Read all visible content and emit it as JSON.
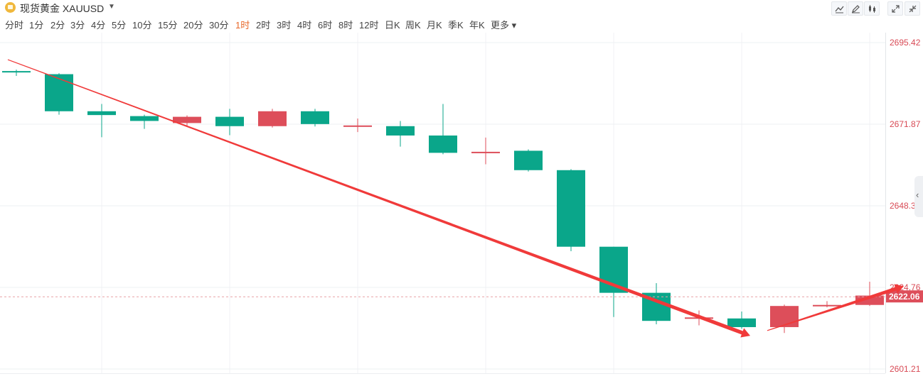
{
  "header": {
    "symbol_name": "现货黄金 XAUUSD",
    "dropdown_icon": "caret-down-icon",
    "tools": [
      "line-tool-icon",
      "draw-tool-icon",
      "indicator-tool-icon",
      "fullscreen-icon"
    ]
  },
  "periods": [
    "分时",
    "1分",
    "2分",
    "3分",
    "4分",
    "5分",
    "10分",
    "15分",
    "20分",
    "30分",
    "1时",
    "2时",
    "3时",
    "4时",
    "6时",
    "8时",
    "12时",
    "日K",
    "周K",
    "月K",
    "季K",
    "年K",
    "更多"
  ],
  "active_period": "1时",
  "colors": {
    "up": "#dd4e5a",
    "down": "#0aa68a",
    "accent": "#e8692b",
    "arrow": "#f03a3a"
  },
  "chart_data": {
    "type": "candlestick",
    "title": "",
    "y_ticks": [
      "2695.42",
      "2671.87",
      "2648.32",
      "2624.76",
      "2601.21"
    ],
    "ylim": [
      2601.21,
      2695.42
    ],
    "current_price": "2622.06",
    "grid": true,
    "candles": [
      {
        "open": 2687.2,
        "close": 2686.8,
        "high": 2687.6,
        "low": 2685.8
      },
      {
        "open": 2686.3,
        "close": 2675.6,
        "high": 2686.6,
        "low": 2674.6
      },
      {
        "open": 2675.6,
        "close": 2674.5,
        "high": 2677.7,
        "low": 2668.1
      },
      {
        "open": 2674.2,
        "close": 2672.8,
        "high": 2674.6,
        "low": 2670.5
      },
      {
        "open": 2672.2,
        "close": 2674.0,
        "high": 2674.4,
        "low": 2671.2
      },
      {
        "open": 2674.0,
        "close": 2671.3,
        "high": 2676.3,
        "low": 2668.7
      },
      {
        "open": 2671.3,
        "close": 2675.6,
        "high": 2676.3,
        "low": 2670.9
      },
      {
        "open": 2675.6,
        "close": 2671.9,
        "high": 2676.3,
        "low": 2671.2
      },
      {
        "open": 2671.5,
        "close": 2671.5,
        "high": 2673.5,
        "low": 2669.6
      },
      {
        "open": 2671.3,
        "close": 2668.6,
        "high": 2672.8,
        "low": 2665.4
      },
      {
        "open": 2668.6,
        "close": 2663.6,
        "high": 2677.7,
        "low": 2663.2
      },
      {
        "open": 2663.6,
        "close": 2663.9,
        "high": 2668.0,
        "low": 2660.3
      },
      {
        "open": 2664.2,
        "close": 2658.6,
        "high": 2664.6,
        "low": 2658.2
      },
      {
        "open": 2658.6,
        "close": 2636.5,
        "high": 2658.9,
        "low": 2635.2
      },
      {
        "open": 2636.5,
        "close": 2623.2,
        "high": 2636.5,
        "low": 2616.2
      },
      {
        "open": 2623.2,
        "close": 2615.1,
        "high": 2626.0,
        "low": 2614.1
      },
      {
        "open": 2616.1,
        "close": 2616.1,
        "high": 2618.1,
        "low": 2613.8
      },
      {
        "open": 2615.8,
        "close": 2613.3,
        "high": 2617.8,
        "low": 2612.8
      },
      {
        "open": 2613.3,
        "close": 2619.4,
        "high": 2619.8,
        "low": 2611.6
      },
      {
        "open": 2619.4,
        "close": 2619.7,
        "high": 2620.8,
        "low": 2619.0
      },
      {
        "open": 2619.7,
        "close": 2622.4,
        "high": 2626.4,
        "low": 2619.4
      }
    ],
    "trend_lines": [
      {
        "from": {
          "index": -0.2,
          "price": 2690.5
        },
        "to": {
          "index": 17.2,
          "price": 2610.8
        },
        "arrow": true
      },
      {
        "from": {
          "index": 17.6,
          "price": 2612.3
        },
        "to": {
          "index": 20.8,
          "price": 2625.1
        },
        "arrow": true
      }
    ]
  }
}
